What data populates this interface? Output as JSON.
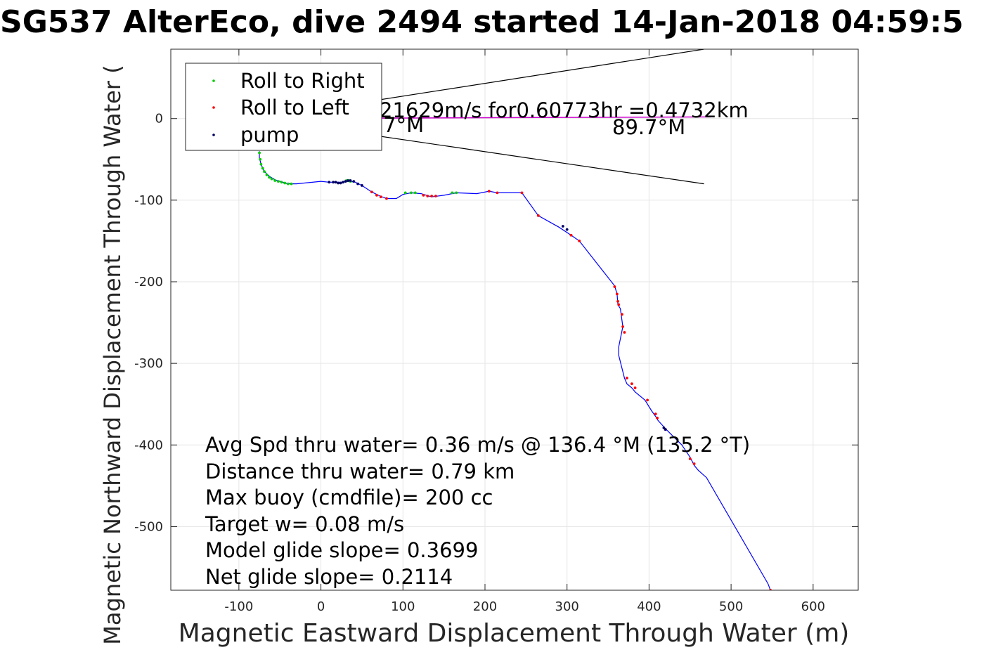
{
  "chart_data": {
    "type": "line",
    "title": "SG537 AlterEco, dive 2494 started 14-Jan-2018 04:59:5",
    "xlabel": "Magnetic Eastward Displacement Through Water (m)",
    "ylabel": "Magnetic Northward Displacement Through Water (",
    "xlim": [
      -183,
      655
    ],
    "ylim": [
      -578,
      85
    ],
    "xticks": [
      -100,
      0,
      100,
      200,
      300,
      400,
      500,
      600
    ],
    "xtick_labels": [
      "-100",
      "0",
      "100",
      "200",
      "300",
      "400",
      "500",
      "600"
    ],
    "yticks": [
      0,
      -100,
      -200,
      -300,
      -400,
      -500
    ],
    "ytick_labels": [
      "0",
      "-100",
      "-200",
      "-300",
      "-400",
      "-500"
    ],
    "grid": true,
    "legend_position": "top-left",
    "legend": [
      {
        "label": "Roll to Right",
        "color": "#00cc00"
      },
      {
        "label": "Roll to Left",
        "color": "#ff0000"
      },
      {
        "label": "pump",
        "color": "#000066"
      }
    ],
    "colors": {
      "track": "#0000ff",
      "current": "#cc00cc",
      "cone": "#000000",
      "grid": "#e6e6e6"
    },
    "track": {
      "x": [
        -75,
        -75,
        -73,
        -70,
        -66,
        -61,
        -56,
        -50,
        -44,
        -37,
        -30,
        0,
        10,
        25,
        35,
        42,
        50,
        62,
        72,
        80,
        92,
        100,
        110,
        122,
        135,
        150,
        165,
        190,
        205,
        215,
        245,
        265,
        290,
        305,
        315,
        358,
        361,
        362,
        365,
        366,
        368,
        363,
        363,
        370,
        373,
        379,
        383,
        395,
        403,
        408,
        411,
        420,
        425,
        440,
        450,
        455,
        460,
        470,
        545,
        548
      ],
      "y": [
        -40,
        -48,
        -56,
        -63,
        -68,
        -72,
        -75,
        -77,
        -79,
        -80,
        -80,
        -77,
        -78,
        -78,
        -77,
        -78,
        -82,
        -90,
        -95,
        -98,
        -98,
        -93,
        -91,
        -92,
        -96,
        -94,
        -91,
        -92,
        -89,
        -91,
        -91,
        -119,
        -133,
        -143,
        -150,
        -205,
        -215,
        -228,
        -233,
        -240,
        -255,
        -280,
        -290,
        -318,
        -325,
        -330,
        -335,
        -345,
        -358,
        -365,
        -370,
        -380,
        -385,
        -400,
        -415,
        -425,
        -431,
        -440,
        -570,
        -578
      ]
    },
    "roll_right_points": {
      "x": [
        -75,
        -74,
        -73,
        -71,
        -69,
        -66,
        -63,
        -60,
        -56,
        -52,
        -48,
        -44,
        -40,
        -36,
        31,
        33,
        35,
        36,
        103,
        110,
        115,
        160,
        165
      ],
      "y": [
        -42,
        -50,
        -56,
        -61,
        -65,
        -69,
        -72,
        -74,
        -76,
        -77,
        -78,
        -79,
        -80,
        -80,
        -76,
        -76,
        -76,
        -77,
        -91,
        -91,
        -91,
        -91,
        -91
      ]
    },
    "roll_left_points": {
      "x": [
        62,
        68,
        73,
        80,
        125,
        130,
        135,
        140,
        205,
        215,
        245,
        265,
        305,
        315,
        358,
        361,
        362,
        363,
        367,
        368,
        370,
        373,
        379,
        383,
        398,
        408,
        410,
        420,
        450,
        455,
        548
      ],
      "y": [
        -90,
        -94,
        -96,
        -98,
        -94,
        -95,
        -95,
        -95,
        -89,
        -91,
        -91,
        -119,
        -143,
        -150,
        -206,
        -215,
        -224,
        -228,
        -240,
        -255,
        -262,
        -318,
        -325,
        -330,
        -345,
        -362,
        -367,
        -381,
        -417,
        -423,
        -578
      ]
    },
    "pump_points": {
      "x": [
        10,
        15,
        18,
        21,
        24,
        27,
        30,
        33,
        36,
        40,
        45,
        50,
        295,
        300,
        418,
        420
      ],
      "y": [
        -78,
        -78,
        -78,
        -79,
        -79,
        -78,
        -77,
        -76,
        -76,
        -77,
        -80,
        -82,
        -132,
        -136,
        -379,
        -381
      ]
    },
    "current_vector": {
      "x": [
        -75,
        475
      ],
      "y": [
        0,
        2
      ]
    },
    "cone_lines": [
      {
        "x": [
          -75,
          467
        ],
        "y": [
          0,
          85
        ]
      },
      {
        "x": [
          -75,
          467
        ],
        "y": [
          0,
          -80
        ]
      }
    ],
    "annotations": {
      "current": "21629m/s for0.60773hr =0.4732km",
      "heading_left": ".7°M",
      "heading_right": "89.7°M",
      "stats": [
        "Avg Spd thru water=  0.36 m/s @ 136.4 °M (135.2 °T)",
        "Distance thru water=  0.79 km",
        "Max buoy (cmdfile)= 200 cc",
        "Target w= 0.08 m/s",
        "Model glide slope= 0.3699",
        "Net glide slope= 0.2114"
      ]
    }
  }
}
